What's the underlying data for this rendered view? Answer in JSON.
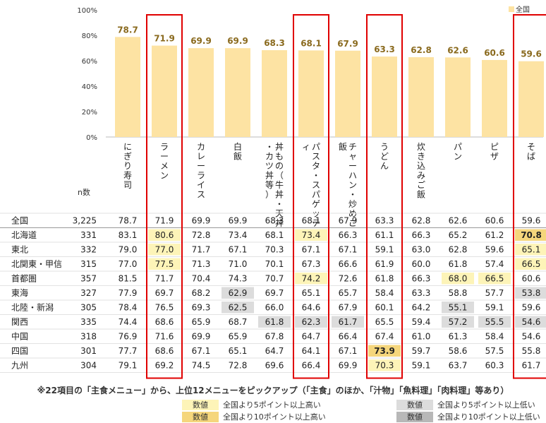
{
  "chart_data": {
    "type": "bar",
    "legend_label": "全国",
    "ylim": [
      0,
      100
    ],
    "yticks": [
      "0%",
      "20%",
      "40%",
      "60%",
      "80%",
      "100%"
    ],
    "categories": [
      "にぎり寿司",
      "ラーメン",
      "カレーライス",
      "白飯",
      "丼もの（牛丼・天丼・カツ丼等）",
      "パスタ・スパゲッティ",
      "チャーハン・炒めご飯",
      "うどん",
      "炊き込みご飯",
      "パン",
      "ピザ",
      "そば"
    ],
    "values": [
      78.7,
      71.9,
      69.9,
      69.9,
      68.3,
      68.1,
      67.9,
      63.3,
      62.8,
      62.6,
      60.6,
      59.6
    ],
    "highlighted_columns": [
      "ラーメン",
      "パスタ・スパゲッティ",
      "うどん",
      "そば"
    ],
    "n_label": "n数",
    "table": {
      "rows": [
        {
          "region": "全国",
          "n": "3,225",
          "values": [
            "78.7",
            "71.9",
            "69.9",
            "69.9",
            "68.3",
            "68.1",
            "67.9",
            "63.3",
            "62.8",
            "62.6",
            "60.6",
            "59.6"
          ],
          "marks": [
            0,
            0,
            0,
            0,
            0,
            0,
            0,
            0,
            0,
            0,
            0,
            0
          ]
        },
        {
          "region": "北海道",
          "n": "331",
          "values": [
            "83.1",
            "80.6",
            "72.8",
            "73.4",
            "68.1",
            "73.4",
            "66.3",
            "61.1",
            "66.3",
            "65.2",
            "61.2",
            "70.8"
          ],
          "marks": [
            0,
            1,
            0,
            0,
            0,
            1,
            0,
            0,
            0,
            0,
            0,
            2
          ]
        },
        {
          "region": "東北",
          "n": "332",
          "values": [
            "79.0",
            "77.0",
            "71.7",
            "67.1",
            "70.3",
            "67.1",
            "67.1",
            "59.1",
            "63.0",
            "62.8",
            "59.6",
            "65.1"
          ],
          "marks": [
            0,
            1,
            0,
            0,
            0,
            0,
            0,
            0,
            0,
            0,
            0,
            1
          ]
        },
        {
          "region": "北関東・甲信",
          "n": "315",
          "values": [
            "77.0",
            "77.5",
            "71.3",
            "71.0",
            "70.1",
            "67.3",
            "66.6",
            "61.9",
            "60.0",
            "61.8",
            "57.4",
            "66.5"
          ],
          "marks": [
            0,
            1,
            0,
            0,
            0,
            0,
            0,
            0,
            0,
            0,
            0,
            1
          ]
        },
        {
          "region": "首都圏",
          "n": "357",
          "values": [
            "81.5",
            "71.7",
            "70.4",
            "74.3",
            "70.7",
            "74.2",
            "72.6",
            "61.8",
            "66.3",
            "68.0",
            "66.5",
            "60.6"
          ],
          "marks": [
            0,
            0,
            0,
            0,
            0,
            1,
            0,
            0,
            0,
            1,
            1,
            0
          ]
        },
        {
          "region": "東海",
          "n": "327",
          "values": [
            "77.9",
            "69.7",
            "68.2",
            "62.9",
            "69.7",
            "65.1",
            "65.7",
            "58.4",
            "63.3",
            "58.8",
            "57.7",
            "53.8"
          ],
          "marks": [
            0,
            0,
            0,
            -1,
            0,
            0,
            0,
            0,
            0,
            0,
            0,
            -1
          ]
        },
        {
          "region": "北陸・新潟",
          "n": "305",
          "values": [
            "78.4",
            "76.5",
            "69.3",
            "62.5",
            "66.0",
            "64.6",
            "67.9",
            "60.1",
            "64.2",
            "55.1",
            "59.1",
            "59.6"
          ],
          "marks": [
            0,
            0,
            0,
            -1,
            0,
            0,
            0,
            0,
            0,
            -1,
            0,
            0
          ]
        },
        {
          "region": "関西",
          "n": "335",
          "values": [
            "74.4",
            "68.6",
            "65.9",
            "68.7",
            "61.8",
            "62.3",
            "61.7",
            "65.5",
            "59.4",
            "57.2",
            "55.5",
            "54.6"
          ],
          "marks": [
            0,
            0,
            0,
            0,
            -1,
            -1,
            -1,
            0,
            0,
            -1,
            -1,
            -1
          ]
        },
        {
          "region": "中国",
          "n": "318",
          "values": [
            "76.9",
            "71.6",
            "69.9",
            "65.9",
            "67.8",
            "64.7",
            "66.4",
            "67.4",
            "61.0",
            "61.3",
            "58.4",
            "54.6"
          ],
          "marks": [
            0,
            0,
            0,
            0,
            0,
            0,
            0,
            0,
            0,
            0,
            0,
            0
          ]
        },
        {
          "region": "四国",
          "n": "301",
          "values": [
            "77.7",
            "68.6",
            "67.1",
            "65.1",
            "64.7",
            "64.1",
            "67.1",
            "73.9",
            "59.7",
            "58.6",
            "57.5",
            "55.8"
          ],
          "marks": [
            0,
            0,
            0,
            0,
            0,
            0,
            0,
            2,
            0,
            0,
            0,
            0
          ]
        },
        {
          "region": "九州",
          "n": "304",
          "values": [
            "79.1",
            "69.2",
            "74.5",
            "72.8",
            "69.6",
            "66.4",
            "69.9",
            "70.3",
            "59.1",
            "63.7",
            "60.3",
            "61.7"
          ],
          "marks": [
            0,
            0,
            0,
            0,
            0,
            0,
            0,
            1,
            0,
            0,
            0,
            0
          ]
        }
      ]
    }
  },
  "note": "※22項目の「主食メニュー」から、上位12メニューをピックアップ（「主食」のほか、「汁物」「魚料理」「肉料理」等あり）",
  "legend": {
    "swatch_text": "数値",
    "high5": "全国より5ポイント以上高い",
    "high10": "全国より10ポイント以上高い",
    "low5": "全国より5ポイント以上低い",
    "low10": "全国より10ポイント以上低い"
  },
  "colors": {
    "bar": "#fde3a3",
    "bar_label": "#8a6a1e",
    "red": "#e00000",
    "high5": "#fdf4b8",
    "high10": "#f5d67c",
    "low5": "#dcdcdc",
    "low10": "#b8b8b8"
  }
}
